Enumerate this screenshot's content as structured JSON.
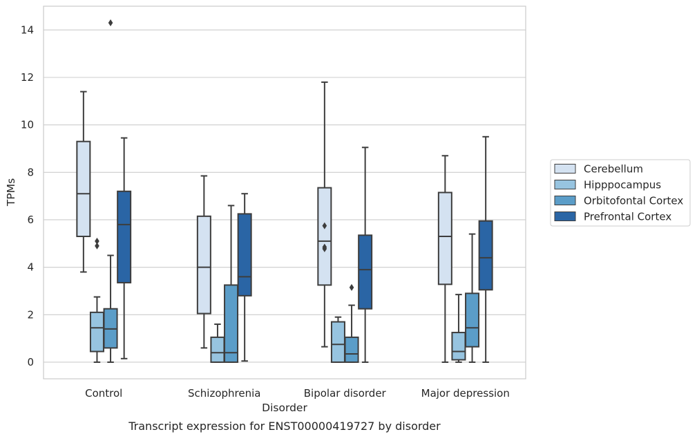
{
  "caption": "Transcript expression for ENST00000419727 by disorder",
  "chart_data": {
    "type": "box",
    "title": "",
    "xlabel": "Disorder",
    "ylabel": "TPMs",
    "ylim": [
      -0.7,
      15
    ],
    "yticks": [
      0,
      2,
      4,
      6,
      8,
      10,
      12,
      14
    ],
    "grid": "horizontal",
    "legend_position": "right",
    "categories": [
      "Control",
      "Schizophrenia",
      "Bipolar disorder",
      "Major depression"
    ],
    "colors": {
      "Cerebellum": "#d4e2f1",
      "Hipppocampus": "#97c4e0",
      "Orbitofontal Cortex": "#5b9dc8",
      "Prefrontal Cortex": "#2a65a5"
    },
    "series": [
      {
        "name": "Cerebellum",
        "boxes": [
          {
            "whislo": 3.8,
            "q1": 5.3,
            "med": 7.1,
            "q3": 9.3,
            "whishi": 11.4,
            "fliers": []
          },
          {
            "whislo": 0.6,
            "q1": 2.05,
            "med": 4.0,
            "q3": 6.15,
            "whishi": 7.85,
            "fliers": []
          },
          {
            "whislo": 0.65,
            "q1": 3.25,
            "med": 5.1,
            "q3": 7.35,
            "whishi": 11.8,
            "fliers": [
              5.75,
              4.85,
              4.78
            ]
          },
          {
            "whislo": 0.0,
            "q1": 3.28,
            "med": 5.3,
            "q3": 7.15,
            "whishi": 8.7,
            "fliers": []
          }
        ]
      },
      {
        "name": "Hipppocampus",
        "boxes": [
          {
            "whislo": 0.0,
            "q1": 0.45,
            "med": 1.45,
            "q3": 2.1,
            "whishi": 2.75,
            "fliers": [
              5.1,
              4.9
            ]
          },
          {
            "whislo": 0.0,
            "q1": 0.0,
            "med": 0.4,
            "q3": 1.05,
            "whishi": 1.6,
            "fliers": []
          },
          {
            "whislo": 0.0,
            "q1": 0.0,
            "med": 0.75,
            "q3": 1.7,
            "whishi": 1.9,
            "fliers": []
          },
          {
            "whislo": 0.0,
            "q1": 0.1,
            "med": 0.45,
            "q3": 1.25,
            "whishi": 2.85,
            "fliers": []
          }
        ]
      },
      {
        "name": "Orbitofontal Cortex",
        "boxes": [
          {
            "whislo": 0.0,
            "q1": 0.6,
            "med": 1.4,
            "q3": 2.25,
            "whishi": 4.5,
            "fliers": [
              14.3
            ]
          },
          {
            "whislo": 0.0,
            "q1": 0.0,
            "med": 0.4,
            "q3": 3.25,
            "whishi": 6.6,
            "fliers": []
          },
          {
            "whislo": 0.0,
            "q1": 0.0,
            "med": 0.35,
            "q3": 1.05,
            "whishi": 2.4,
            "fliers": [
              3.15
            ]
          },
          {
            "whislo": 0.0,
            "q1": 0.65,
            "med": 1.45,
            "q3": 2.9,
            "whishi": 5.4,
            "fliers": []
          }
        ]
      },
      {
        "name": "Prefrontal Cortex",
        "boxes": [
          {
            "whislo": 0.15,
            "q1": 3.35,
            "med": 5.8,
            "q3": 7.2,
            "whishi": 9.45,
            "fliers": []
          },
          {
            "whislo": 0.05,
            "q1": 2.8,
            "med": 3.6,
            "q3": 6.25,
            "whishi": 7.1,
            "fliers": []
          },
          {
            "whislo": 0.0,
            "q1": 2.25,
            "med": 3.9,
            "q3": 5.35,
            "whishi": 9.05,
            "fliers": []
          },
          {
            "whislo": 0.0,
            "q1": 3.05,
            "med": 4.4,
            "q3": 5.95,
            "whishi": 9.5,
            "fliers": []
          }
        ]
      }
    ]
  }
}
